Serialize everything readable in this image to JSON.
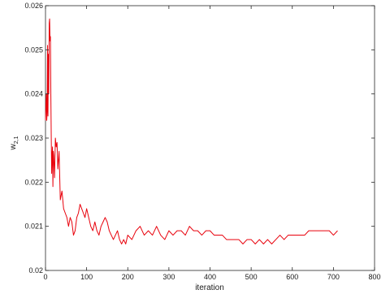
{
  "chart_data": {
    "type": "line",
    "title": "",
    "xlabel": "iteration",
    "ylabel": "w",
    "ylabel_subscript": "2,1",
    "xlim": [
      0,
      800
    ],
    "ylim": [
      0.02,
      0.026
    ],
    "xticks": [
      0,
      100,
      200,
      300,
      400,
      500,
      600,
      700,
      800
    ],
    "xtick_labels": [
      "0",
      "100",
      "200",
      "300",
      "400",
      "500",
      "600",
      "700",
      "800"
    ],
    "yticks": [
      0.02,
      0.021,
      0.022,
      0.023,
      0.024,
      0.025,
      0.026
    ],
    "ytick_labels": [
      "0.02",
      "0.021",
      "0.022",
      "0.023",
      "0.024",
      "0.025",
      "0.026"
    ],
    "grid": false,
    "legend": "none",
    "series": [
      {
        "color": "#e8000b",
        "x": [
          0,
          1,
          2,
          3,
          4,
          5,
          6,
          7,
          8,
          9,
          10,
          11,
          12,
          13,
          14,
          15,
          16,
          17,
          18,
          19,
          20,
          22,
          24,
          26,
          28,
          30,
          33,
          36,
          40,
          44,
          48,
          52,
          56,
          60,
          64,
          68,
          72,
          76,
          80,
          84,
          88,
          92,
          96,
          100,
          105,
          110,
          115,
          120,
          125,
          130,
          135,
          140,
          145,
          150,
          155,
          160,
          165,
          170,
          175,
          180,
          185,
          190,
          195,
          200,
          210,
          220,
          230,
          240,
          250,
          260,
          270,
          280,
          290,
          300,
          310,
          320,
          330,
          340,
          350,
          360,
          370,
          380,
          390,
          400,
          410,
          420,
          430,
          440,
          450,
          460,
          470,
          480,
          490,
          500,
          510,
          520,
          530,
          540,
          550,
          560,
          570,
          580,
          590,
          600,
          610,
          620,
          630,
          640,
          650,
          660,
          670,
          680,
          690,
          700,
          710
        ],
        "y": [
          0.0234,
          0.0238,
          0.024,
          0.0234,
          0.0236,
          0.0251,
          0.0235,
          0.0249,
          0.024,
          0.0256,
          0.0257,
          0.0252,
          0.0253,
          0.024,
          0.023,
          0.0222,
          0.0226,
          0.0228,
          0.0219,
          0.0227,
          0.0226,
          0.0221,
          0.023,
          0.0228,
          0.0229,
          0.0223,
          0.0227,
          0.0216,
          0.0218,
          0.0214,
          0.0213,
          0.0212,
          0.021,
          0.0212,
          0.0211,
          0.0208,
          0.0209,
          0.0212,
          0.0213,
          0.0215,
          0.0214,
          0.0213,
          0.0212,
          0.0214,
          0.0212,
          0.021,
          0.0209,
          0.0211,
          0.0209,
          0.0208,
          0.021,
          0.0211,
          0.0212,
          0.0211,
          0.0209,
          0.0208,
          0.0207,
          0.0208,
          0.0209,
          0.0207,
          0.0206,
          0.0207,
          0.0206,
          0.0208,
          0.0207,
          0.0209,
          0.021,
          0.0208,
          0.0209,
          0.0208,
          0.021,
          0.0208,
          0.0207,
          0.0209,
          0.0208,
          0.0209,
          0.0209,
          0.0208,
          0.021,
          0.0209,
          0.0209,
          0.0208,
          0.0209,
          0.0209,
          0.0208,
          0.0208,
          0.0208,
          0.0207,
          0.0207,
          0.0207,
          0.0207,
          0.0206,
          0.0207,
          0.0207,
          0.0206,
          0.0207,
          0.0206,
          0.0207,
          0.0206,
          0.0207,
          0.0208,
          0.0207,
          0.0208,
          0.0208,
          0.0208,
          0.0208,
          0.0208,
          0.0209,
          0.0209,
          0.0209,
          0.0209,
          0.0209,
          0.0209,
          0.0208,
          0.0209
        ]
      }
    ]
  }
}
